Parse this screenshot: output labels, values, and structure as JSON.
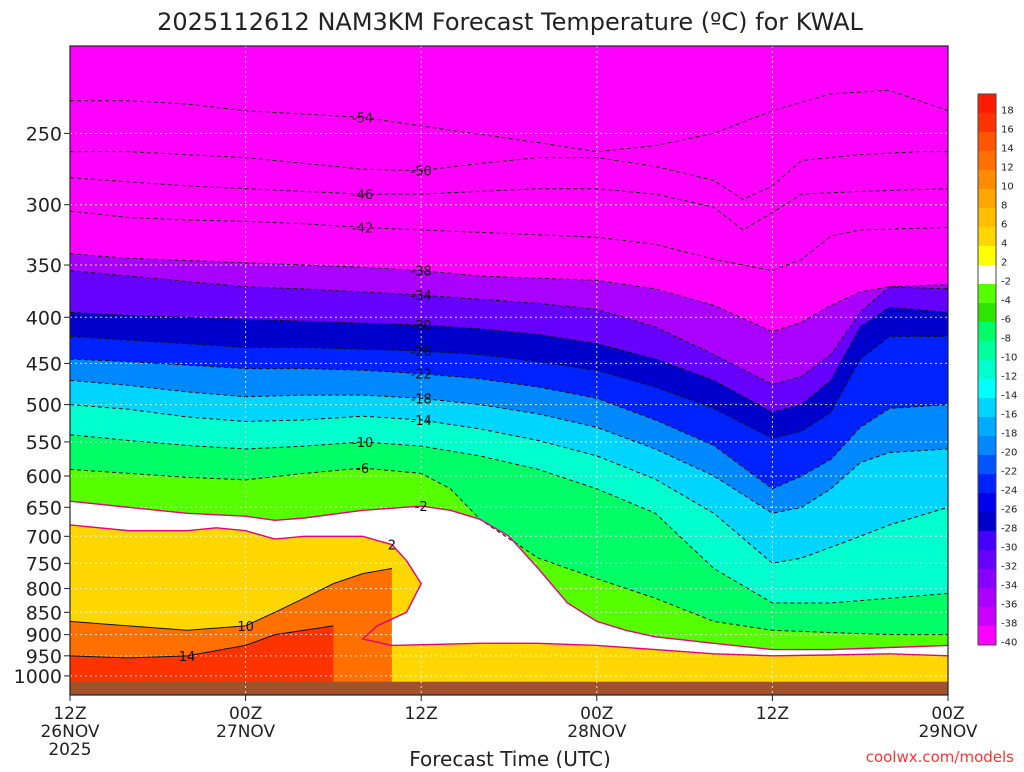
{
  "chart_data": {
    "type": "heatmap",
    "title": "2025112612 NAM3KM Forecast Temperature (ºC) for KWAL",
    "xlabel": "Forecast Time (UTC)",
    "ylabel": "",
    "credit": "coolwx.com/models",
    "y_scale": "log-pressure",
    "ylim": [
      1050,
      200
    ],
    "y_ticks": [
      250,
      300,
      350,
      400,
      450,
      500,
      550,
      600,
      650,
      700,
      750,
      800,
      850,
      900,
      950,
      1000
    ],
    "x_range_hours": [
      0,
      60
    ],
    "x_ticks": [
      {
        "hour": 0,
        "labels": [
          "12Z",
          "26NOV",
          "2025"
        ]
      },
      {
        "hour": 12,
        "labels": [
          "00Z",
          "27NOV"
        ]
      },
      {
        "hour": 24,
        "labels": [
          "12Z"
        ]
      },
      {
        "hour": 36,
        "labels": [
          "00Z",
          "28NOV"
        ]
      },
      {
        "hour": 48,
        "labels": [
          "12Z"
        ]
      },
      {
        "hour": 60,
        "labels": [
          "00Z",
          "29NOV"
        ]
      }
    ],
    "grid": true,
    "colorbar": {
      "labels": [
        "18",
        "16",
        "14",
        "12",
        "10",
        "8",
        "6",
        "4",
        "2",
        "-2",
        "-4",
        "-6",
        "-8",
        "-10",
        "-12",
        "-14",
        "-16",
        "-18",
        "-20",
        "-22",
        "-24",
        "-26",
        "-28",
        "-30",
        "-32",
        "-34",
        "-36",
        "-38",
        "-40"
      ],
      "colors": [
        "#ff1a00",
        "#ff3300",
        "#ff5500",
        "#ff7000",
        "#ff8c00",
        "#ffa500",
        "#ffbf00",
        "#ffd700",
        "#ffff00",
        "#ffffff",
        "#55ff00",
        "#2ee500",
        "#00ff66",
        "#00ff9f",
        "#00ffcc",
        "#00ffff",
        "#00d5ff",
        "#00aaff",
        "#0088ff",
        "#0055ff",
        "#0022ff",
        "#0000ee",
        "#0000cc",
        "#4400ff",
        "#6600ff",
        "#8800ff",
        "#aa00ff",
        "#cc00ff",
        "#ff00ff"
      ]
    },
    "series": [
      {
        "level": -54,
        "points": [
          [
            0,
            230
          ],
          [
            4,
            230
          ],
          [
            8,
            232
          ],
          [
            12,
            236
          ],
          [
            16,
            238
          ],
          [
            20,
            240
          ],
          [
            26,
            248
          ],
          [
            32,
            256
          ],
          [
            36,
            262
          ],
          [
            40,
            258
          ],
          [
            44,
            250
          ],
          [
            48,
            236
          ],
          [
            52,
            226
          ],
          [
            56,
            224
          ],
          [
            60,
            236
          ]
        ]
      },
      {
        "level": -50,
        "points": [
          [
            0,
            262
          ],
          [
            4,
            262
          ],
          [
            8,
            264
          ],
          [
            12,
            266
          ],
          [
            16,
            270
          ],
          [
            20,
            274
          ],
          [
            24,
            275
          ],
          [
            28,
            270
          ],
          [
            32,
            266
          ],
          [
            36,
            266
          ],
          [
            40,
            272
          ],
          [
            44,
            282
          ],
          [
            46,
            296
          ],
          [
            48,
            286
          ],
          [
            50,
            268
          ],
          [
            54,
            264
          ],
          [
            58,
            262
          ],
          [
            60,
            262
          ]
        ]
      },
      {
        "level": -46,
        "points": [
          [
            0,
            280
          ],
          [
            4,
            283
          ],
          [
            8,
            286
          ],
          [
            12,
            288
          ],
          [
            16,
            290
          ],
          [
            20,
            292
          ],
          [
            24,
            292
          ],
          [
            28,
            290
          ],
          [
            32,
            288
          ],
          [
            36,
            288
          ],
          [
            40,
            292
          ],
          [
            44,
            302
          ],
          [
            46,
            320
          ],
          [
            48,
            306
          ],
          [
            50,
            292
          ],
          [
            54,
            290
          ],
          [
            60,
            288
          ]
        ]
      },
      {
        "level": -42,
        "points": [
          [
            0,
            305
          ],
          [
            4,
            310
          ],
          [
            8,
            312
          ],
          [
            12,
            313
          ],
          [
            16,
            315
          ],
          [
            20,
            318
          ],
          [
            24,
            320
          ],
          [
            28,
            322
          ],
          [
            32,
            324
          ],
          [
            36,
            326
          ],
          [
            40,
            332
          ],
          [
            44,
            345
          ],
          [
            48,
            355
          ],
          [
            50,
            345
          ],
          [
            52,
            325
          ],
          [
            54,
            320
          ],
          [
            60,
            318
          ]
        ]
      },
      {
        "level": -38,
        "points": [
          [
            0,
            340
          ],
          [
            4,
            344
          ],
          [
            8,
            346
          ],
          [
            12,
            348
          ],
          [
            16,
            350
          ],
          [
            20,
            352
          ],
          [
            24,
            355
          ],
          [
            28,
            360
          ],
          [
            32,
            362
          ],
          [
            36,
            364
          ],
          [
            40,
            372
          ],
          [
            44,
            388
          ],
          [
            48,
            415
          ],
          [
            50,
            405
          ],
          [
            52,
            388
          ],
          [
            54,
            375
          ],
          [
            56,
            370
          ],
          [
            60,
            368
          ]
        ]
      },
      {
        "level": -34,
        "points": [
          [
            0,
            355
          ],
          [
            4,
            360
          ],
          [
            8,
            365
          ],
          [
            12,
            370
          ],
          [
            16,
            372
          ],
          [
            20,
            375
          ],
          [
            24,
            378
          ],
          [
            28,
            382
          ],
          [
            32,
            386
          ],
          [
            36,
            392
          ],
          [
            40,
            410
          ],
          [
            44,
            440
          ],
          [
            48,
            475
          ],
          [
            50,
            465
          ],
          [
            52,
            440
          ],
          [
            54,
            395
          ],
          [
            56,
            370
          ],
          [
            60,
            372
          ]
        ]
      },
      {
        "level": -30,
        "points": [
          [
            0,
            395
          ],
          [
            4,
            398
          ],
          [
            8,
            400
          ],
          [
            12,
            402
          ],
          [
            16,
            404
          ],
          [
            20,
            406
          ],
          [
            24,
            408
          ],
          [
            28,
            412
          ],
          [
            32,
            418
          ],
          [
            36,
            428
          ],
          [
            40,
            445
          ],
          [
            44,
            470
          ],
          [
            48,
            510
          ],
          [
            50,
            500
          ],
          [
            52,
            470
          ],
          [
            54,
            410
          ],
          [
            56,
            390
          ],
          [
            60,
            395
          ]
        ]
      },
      {
        "level": -26,
        "points": [
          [
            0,
            420
          ],
          [
            4,
            424
          ],
          [
            8,
            428
          ],
          [
            12,
            432
          ],
          [
            16,
            432
          ],
          [
            20,
            434
          ],
          [
            24,
            436
          ],
          [
            28,
            440
          ],
          [
            32,
            448
          ],
          [
            36,
            458
          ],
          [
            40,
            478
          ],
          [
            44,
            505
          ],
          [
            48,
            545
          ],
          [
            50,
            535
          ],
          [
            52,
            510
          ],
          [
            54,
            445
          ],
          [
            56,
            420
          ],
          [
            60,
            420
          ]
        ]
      },
      {
        "level": -22,
        "points": [
          [
            0,
            445
          ],
          [
            4,
            448
          ],
          [
            8,
            452
          ],
          [
            12,
            456
          ],
          [
            16,
            456
          ],
          [
            20,
            458
          ],
          [
            24,
            462
          ],
          [
            28,
            468
          ],
          [
            32,
            478
          ],
          [
            36,
            492
          ],
          [
            40,
            520
          ],
          [
            44,
            555
          ],
          [
            48,
            620
          ],
          [
            50,
            600
          ],
          [
            52,
            575
          ],
          [
            54,
            530
          ],
          [
            56,
            505
          ],
          [
            60,
            500
          ]
        ]
      },
      {
        "level": -18,
        "points": [
          [
            0,
            470
          ],
          [
            4,
            476
          ],
          [
            8,
            484
          ],
          [
            12,
            490
          ],
          [
            16,
            488
          ],
          [
            20,
            488
          ],
          [
            24,
            492
          ],
          [
            28,
            500
          ],
          [
            32,
            512
          ],
          [
            36,
            530
          ],
          [
            40,
            560
          ],
          [
            44,
            600
          ],
          [
            48,
            660
          ],
          [
            50,
            650
          ],
          [
            52,
            620
          ],
          [
            54,
            580
          ],
          [
            56,
            565
          ],
          [
            60,
            560
          ]
        ]
      },
      {
        "level": -14,
        "points": [
          [
            0,
            500
          ],
          [
            4,
            506
          ],
          [
            8,
            516
          ],
          [
            12,
            522
          ],
          [
            16,
            520
          ],
          [
            20,
            515
          ],
          [
            24,
            520
          ],
          [
            28,
            532
          ],
          [
            32,
            548
          ],
          [
            36,
            570
          ],
          [
            40,
            605
          ],
          [
            44,
            660
          ],
          [
            48,
            750
          ],
          [
            50,
            740
          ],
          [
            52,
            720
          ],
          [
            54,
            700
          ],
          [
            56,
            680
          ],
          [
            60,
            650
          ]
        ]
      },
      {
        "level": -10,
        "points": [
          [
            0,
            540
          ],
          [
            4,
            548
          ],
          [
            8,
            555
          ],
          [
            12,
            560
          ],
          [
            16,
            556
          ],
          [
            20,
            550
          ],
          [
            24,
            556
          ],
          [
            28,
            570
          ],
          [
            32,
            590
          ],
          [
            36,
            620
          ],
          [
            40,
            660
          ],
          [
            44,
            760
          ],
          [
            48,
            830
          ],
          [
            52,
            830
          ],
          [
            56,
            820
          ],
          [
            60,
            810
          ]
        ]
      },
      {
        "level": -6,
        "points": [
          [
            0,
            590
          ],
          [
            4,
            596
          ],
          [
            8,
            602
          ],
          [
            12,
            606
          ],
          [
            16,
            596
          ],
          [
            20,
            588
          ],
          [
            24,
            596
          ],
          [
            26,
            620
          ],
          [
            28,
            670
          ],
          [
            32,
            740
          ],
          [
            36,
            780
          ],
          [
            40,
            820
          ],
          [
            44,
            870
          ],
          [
            48,
            890
          ],
          [
            52,
            895
          ],
          [
            56,
            900
          ],
          [
            60,
            900
          ]
        ]
      },
      {
        "level": -2,
        "points": [
          [
            0,
            640
          ],
          [
            4,
            650
          ],
          [
            8,
            660
          ],
          [
            12,
            665
          ],
          [
            14,
            672
          ],
          [
            16,
            668
          ],
          [
            20,
            655
          ],
          [
            24,
            648
          ],
          [
            26,
            655
          ],
          [
            28,
            670
          ],
          [
            30,
            700
          ],
          [
            32,
            760
          ],
          [
            34,
            830
          ],
          [
            36,
            870
          ],
          [
            38,
            890
          ],
          [
            40,
            905
          ],
          [
            44,
            920
          ],
          [
            48,
            935
          ],
          [
            52,
            935
          ],
          [
            56,
            930
          ],
          [
            60,
            925
          ]
        ]
      },
      {
        "level": 2,
        "points": [
          [
            0,
            680
          ],
          [
            4,
            690
          ],
          [
            8,
            690
          ],
          [
            10,
            685
          ],
          [
            12,
            690
          ],
          [
            14,
            705
          ],
          [
            16,
            700
          ],
          [
            20,
            700
          ],
          [
            22,
            715
          ],
          [
            23,
            745
          ],
          [
            24,
            790
          ],
          [
            23,
            850
          ],
          [
            21,
            880
          ],
          [
            20,
            910
          ],
          [
            22,
            925
          ],
          [
            28,
            920
          ],
          [
            32,
            920
          ],
          [
            36,
            925
          ],
          [
            40,
            935
          ],
          [
            44,
            945
          ],
          [
            48,
            950
          ],
          [
            52,
            948
          ],
          [
            56,
            945
          ],
          [
            60,
            950
          ]
        ]
      },
      {
        "level": 10,
        "points": [
          [
            0,
            870
          ],
          [
            4,
            880
          ],
          [
            8,
            890
          ],
          [
            12,
            880
          ],
          [
            14,
            850
          ],
          [
            16,
            820
          ],
          [
            18,
            790
          ],
          [
            20,
            770
          ],
          [
            22,
            760
          ]
        ]
      },
      {
        "level": 14,
        "points": [
          [
            0,
            950
          ],
          [
            4,
            955
          ],
          [
            8,
            950
          ],
          [
            12,
            925
          ],
          [
            14,
            900
          ],
          [
            16,
            890
          ],
          [
            18,
            880
          ]
        ]
      }
    ]
  }
}
